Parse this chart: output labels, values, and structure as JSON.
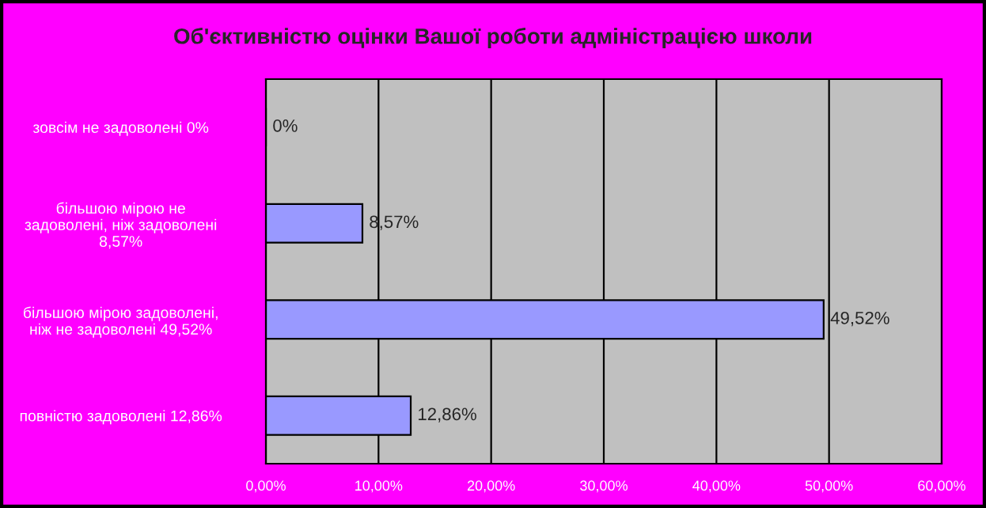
{
  "chart_data": {
    "type": "bar",
    "orientation": "horizontal",
    "title": "Об'єктивністю оцінки Вашої роботи адміністрацією школи",
    "categories": [
      "зовсім не задоволені 0%",
      "більшою мірою не\nзадоволені, ніж задоволені\n8,57%",
      "більшою мірою задоволені,\nніж не задоволені 49,52%",
      "повністю задоволені 12,86%"
    ],
    "values": [
      0,
      8.57,
      49.52,
      12.86
    ],
    "color": "#9999ff",
    "value_labels": [
      "0%",
      "8,57%",
      "49,52%",
      "12,86%"
    ],
    "xlim": [
      0,
      60
    ],
    "xticks": [
      {
        "value": 0,
        "label": "0,00%"
      },
      {
        "value": 10,
        "label": "10,00%"
      },
      {
        "value": 20,
        "label": "20,00%"
      },
      {
        "value": 30,
        "label": "30,00%"
      },
      {
        "value": 40,
        "label": "40,00%"
      },
      {
        "value": 50,
        "label": "50,00%"
      },
      {
        "value": 60,
        "label": "60,00%"
      }
    ],
    "grid": "x",
    "legend": false
  }
}
